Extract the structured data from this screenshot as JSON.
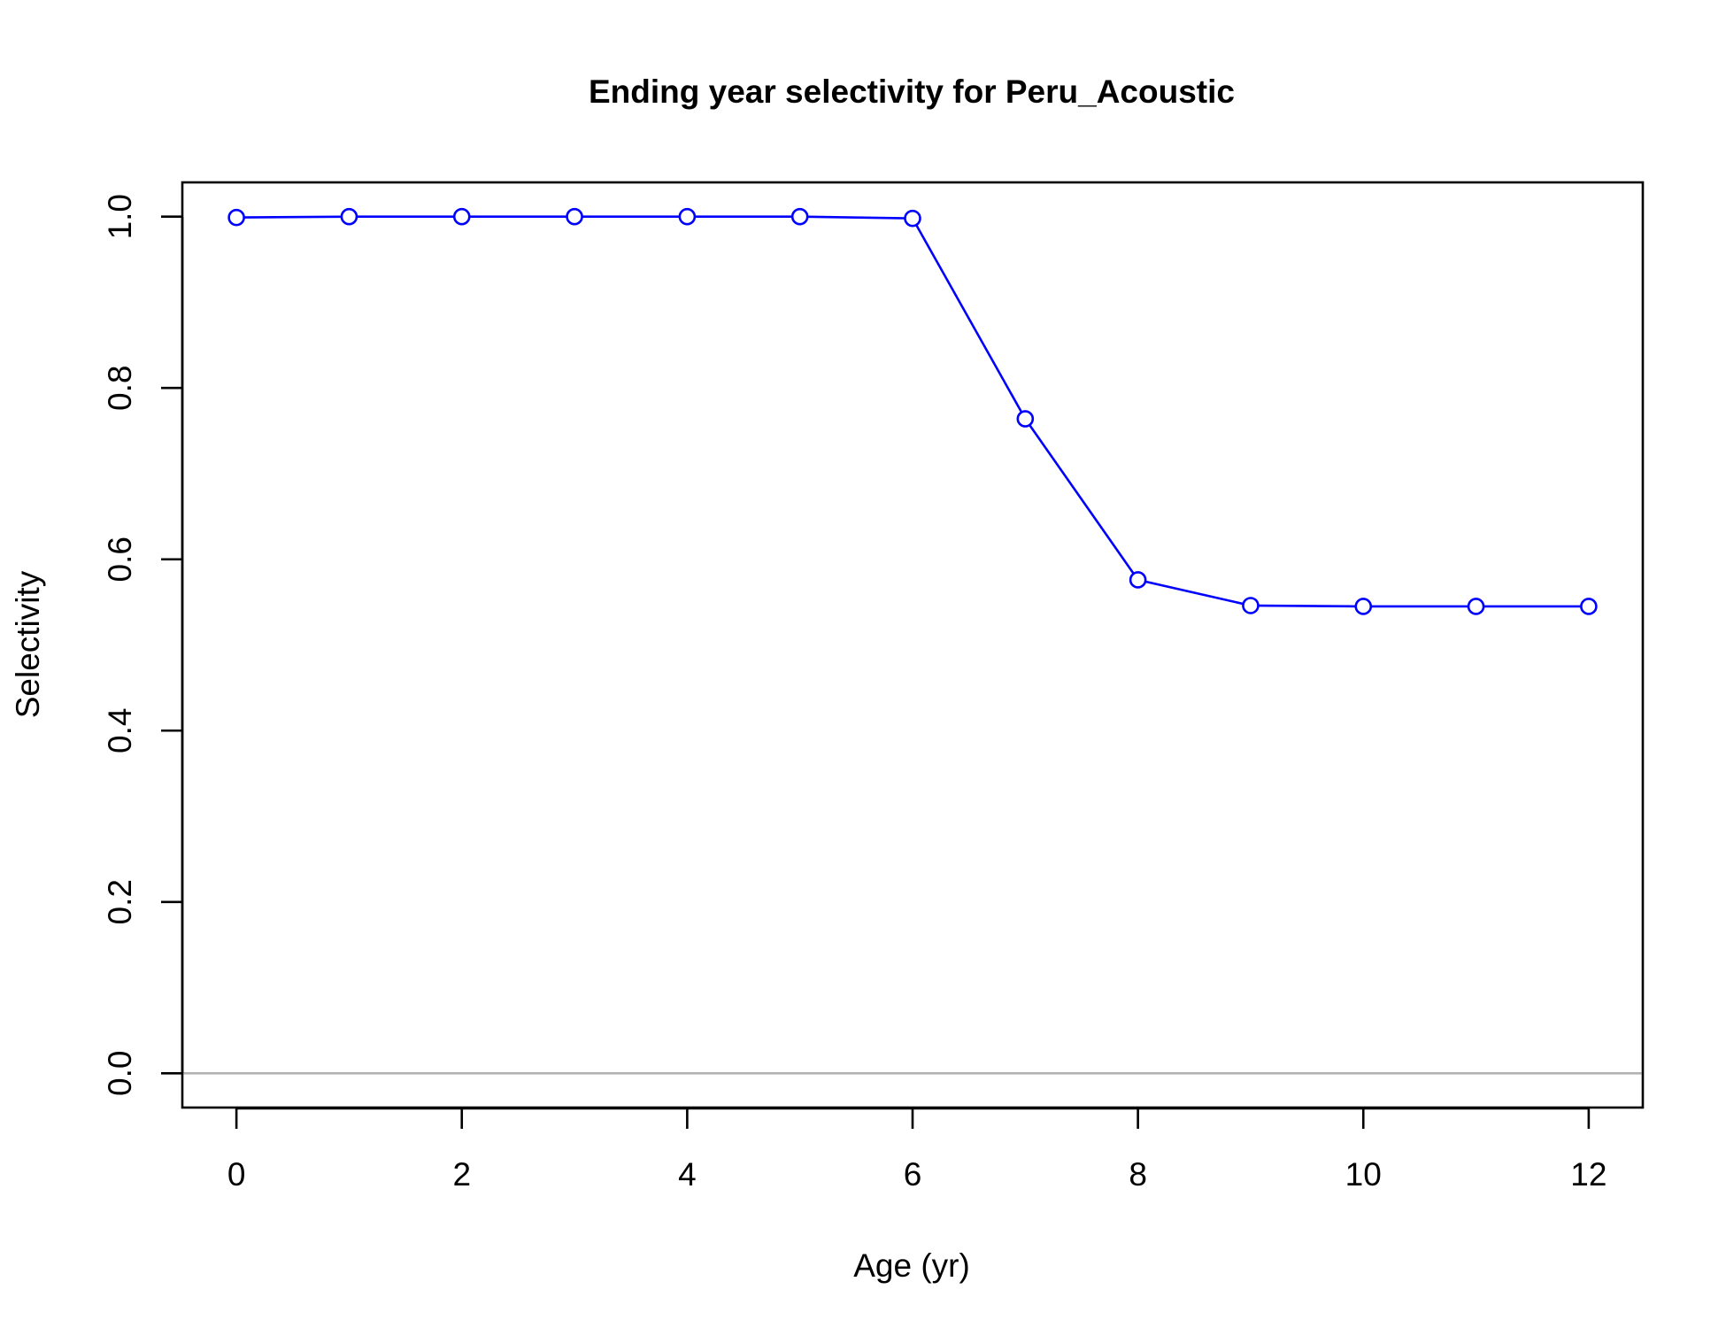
{
  "chart_data": {
    "type": "line",
    "title": "Ending year selectivity for Peru_Acoustic",
    "xlabel": "Age (yr)",
    "ylabel": "Selectivity",
    "x": [
      0,
      1,
      2,
      3,
      4,
      5,
      6,
      7,
      8,
      9,
      10,
      11,
      12
    ],
    "series": [
      {
        "values": [
          0.999,
          1.0,
          1.0,
          1.0,
          1.0,
          1.0,
          0.998,
          0.764,
          0.576,
          0.546,
          0.545,
          0.545,
          0.545
        ],
        "color": "#0000ff",
        "marker": "open-circle"
      }
    ],
    "xlim": [
      -0.48,
      12.48
    ],
    "ylim": [
      -0.04,
      1.04
    ],
    "xticks": [
      "0",
      "2",
      "4",
      "6",
      "8",
      "10",
      "12"
    ],
    "xtick_values": [
      0,
      2,
      4,
      6,
      8,
      10,
      12
    ],
    "yticks": [
      "0.0",
      "0.2",
      "0.4",
      "0.6",
      "0.8",
      "1.0"
    ],
    "ytick_values": [
      0,
      0.2,
      0.4,
      0.6,
      0.8,
      1.0
    ],
    "reference_line": {
      "y": 0,
      "color": "#b3b3b3"
    },
    "grid": false,
    "legend": "none"
  }
}
